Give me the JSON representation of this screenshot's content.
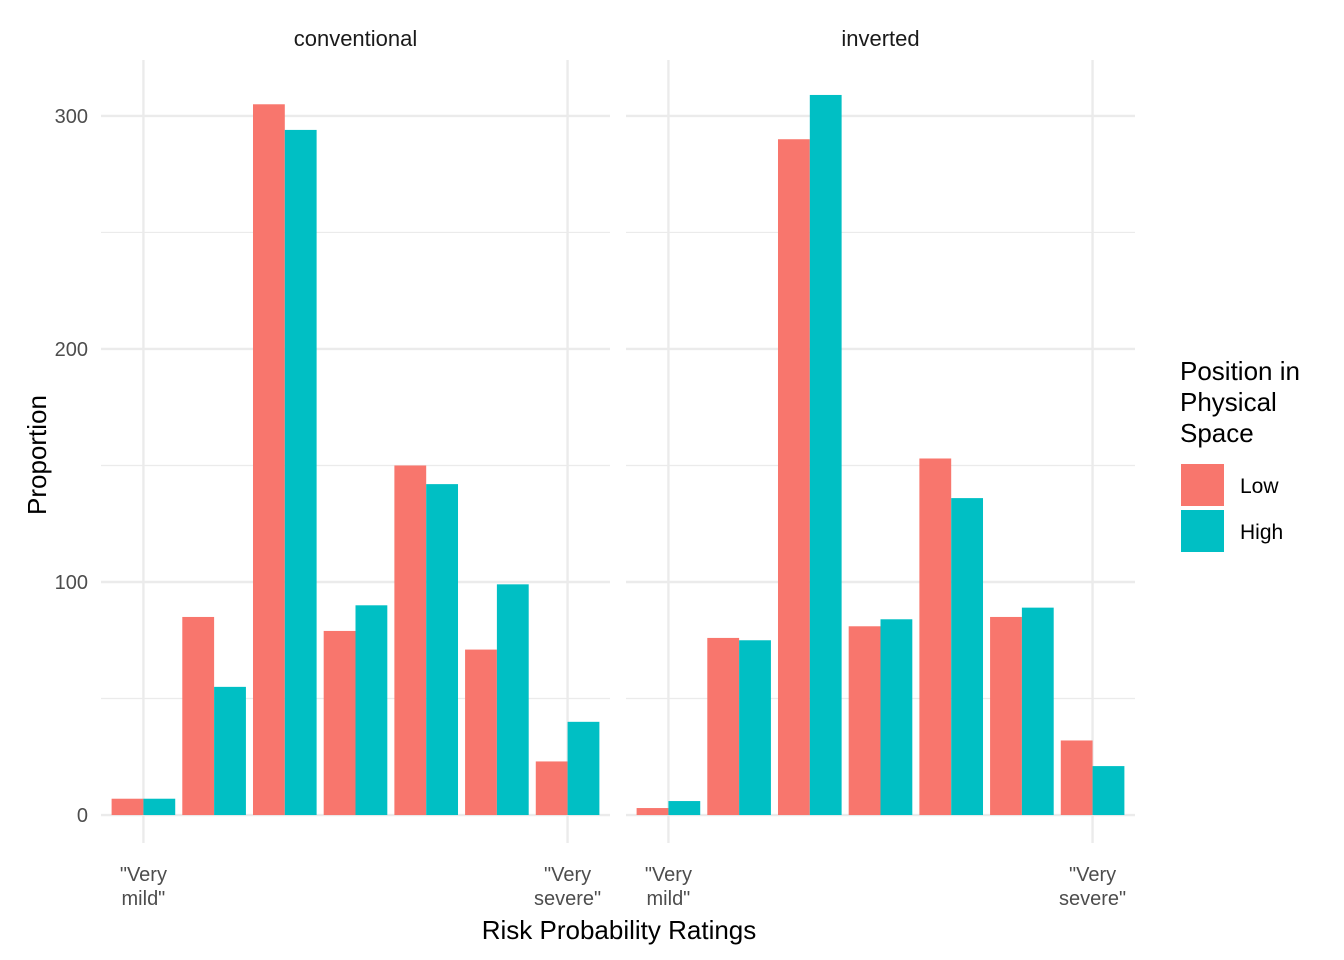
{
  "chart_data": {
    "type": "bar",
    "xlabel": "Risk Probability Ratings",
    "ylabel": "Proportion",
    "ylim": [
      -12,
      324
    ],
    "yticks": [
      0,
      100,
      200,
      300
    ],
    "ybreaks_minor": [
      50,
      150,
      250
    ],
    "categories": [
      1,
      2,
      3,
      4,
      5,
      6,
      7
    ],
    "xticks": [
      {
        "value": 1,
        "lines": [
          "\"Very",
          "mild\""
        ]
      },
      {
        "value": 7,
        "lines": [
          "\"Very",
          "severe\""
        ]
      }
    ],
    "legend": {
      "title_lines": [
        "Position in",
        "Physical",
        "Space"
      ],
      "position": "right",
      "entries": [
        {
          "name": "Low",
          "color": "#F8766D"
        },
        {
          "name": "High",
          "color": "#00BFC4"
        }
      ]
    },
    "panels": [
      {
        "strip": "conventional",
        "series": [
          {
            "name": "Low",
            "values": [
              7,
              85,
              305,
              79,
              150,
              71,
              23
            ]
          },
          {
            "name": "High",
            "values": [
              7,
              55,
              294,
              90,
              142,
              99,
              40
            ]
          }
        ]
      },
      {
        "strip": "inverted",
        "series": [
          {
            "name": "Low",
            "values": [
              3,
              76,
              290,
              81,
              153,
              85,
              32
            ]
          },
          {
            "name": "High",
            "values": [
              6,
              75,
              309,
              84,
              136,
              89,
              21
            ]
          }
        ]
      }
    ]
  }
}
